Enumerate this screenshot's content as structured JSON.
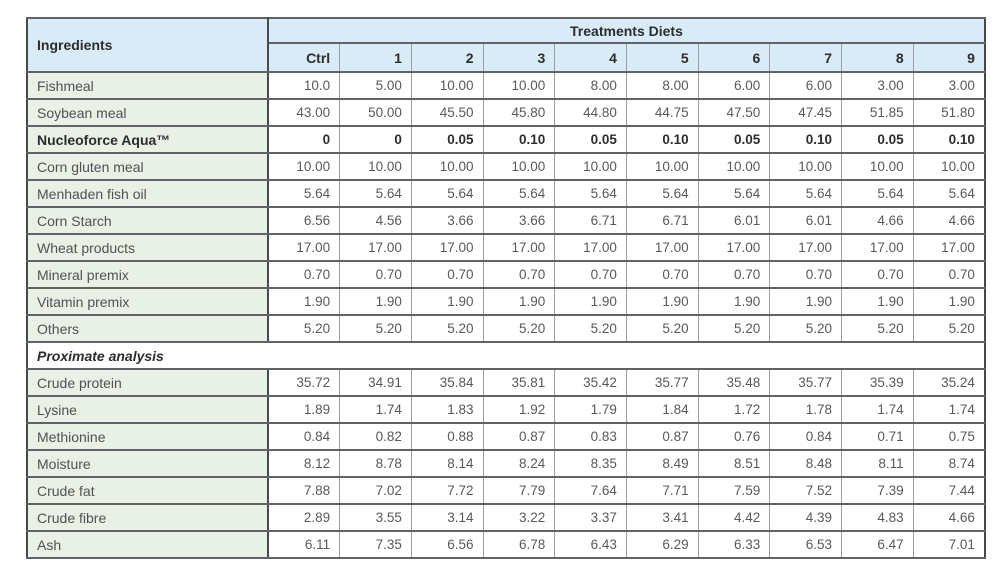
{
  "colors": {
    "header_bg": "#d9ebf7",
    "ingredient_bg": "#e9f0e5",
    "cell_bg": "#ffffff",
    "outer_border": "#47494b",
    "row_border": "#606365",
    "col_border": "#9b9ea1",
    "text": "#58595b"
  },
  "table": {
    "corner_header": "Ingredients",
    "group_header": "Treatments Diets",
    "columns": [
      "Ctrl",
      "1",
      "2",
      "3",
      "4",
      "5",
      "6",
      "7",
      "8",
      "9"
    ],
    "rows": [
      {
        "type": "data",
        "bold": false,
        "label": "Fishmeal",
        "values": [
          "10.0",
          "5.00",
          "10.00",
          "10.00",
          "8.00",
          "8.00",
          "6.00",
          "6.00",
          "3.00",
          "3.00"
        ]
      },
      {
        "type": "data",
        "bold": false,
        "label": "Soybean meal",
        "values": [
          "43.00",
          "50.00",
          "45.50",
          "45.80",
          "44.80",
          "44.75",
          "47.50",
          "47.45",
          "51.85",
          "51.80"
        ]
      },
      {
        "type": "data",
        "bold": true,
        "label": "Nucleoforce Aqua™",
        "values": [
          "0",
          "0",
          "0.05",
          "0.10",
          "0.05",
          "0.10",
          "0.05",
          "0.10",
          "0.05",
          "0.10"
        ]
      },
      {
        "type": "data",
        "bold": false,
        "label": "Corn gluten meal",
        "values": [
          "10.00",
          "10.00",
          "10.00",
          "10.00",
          "10.00",
          "10.00",
          "10.00",
          "10.00",
          "10.00",
          "10.00"
        ]
      },
      {
        "type": "data",
        "bold": false,
        "label": "Menhaden fish oil",
        "values": [
          "5.64",
          "5.64",
          "5.64",
          "5.64",
          "5.64",
          "5.64",
          "5.64",
          "5.64",
          "5.64",
          "5.64"
        ]
      },
      {
        "type": "data",
        "bold": false,
        "label": "Corn Starch",
        "values": [
          "6.56",
          "4.56",
          "3.66",
          "3.66",
          "6.71",
          "6.71",
          "6.01",
          "6.01",
          "4.66",
          "4.66"
        ]
      },
      {
        "type": "data",
        "bold": false,
        "label": "Wheat products",
        "values": [
          "17.00",
          "17.00",
          "17.00",
          "17.00",
          "17.00",
          "17.00",
          "17.00",
          "17.00",
          "17.00",
          "17.00"
        ]
      },
      {
        "type": "data",
        "bold": false,
        "label": "Mineral premix",
        "values": [
          "0.70",
          "0.70",
          "0.70",
          "0.70",
          "0.70",
          "0.70",
          "0.70",
          "0.70",
          "0.70",
          "0.70"
        ]
      },
      {
        "type": "data",
        "bold": false,
        "label": "Vitamin premix",
        "values": [
          "1.90",
          "1.90",
          "1.90",
          "1.90",
          "1.90",
          "1.90",
          "1.90",
          "1.90",
          "1.90",
          "1.90"
        ]
      },
      {
        "type": "data",
        "bold": false,
        "label": "Others",
        "values": [
          "5.20",
          "5.20",
          "5.20",
          "5.20",
          "5.20",
          "5.20",
          "5.20",
          "5.20",
          "5.20",
          "5.20"
        ]
      },
      {
        "type": "section",
        "label": "Proximate analysis"
      },
      {
        "type": "data",
        "bold": false,
        "label": "Crude protein",
        "values": [
          "35.72",
          "34.91",
          "35.84",
          "35.81",
          "35.42",
          "35.77",
          "35.48",
          "35.77",
          "35.39",
          "35.24"
        ]
      },
      {
        "type": "data",
        "bold": false,
        "label": "Lysine",
        "values": [
          "1.89",
          "1.74",
          "1.83",
          "1.92",
          "1.79",
          "1.84",
          "1.72",
          "1.78",
          "1.74",
          "1.74"
        ]
      },
      {
        "type": "data",
        "bold": false,
        "label": "Methionine",
        "values": [
          "0.84",
          "0.82",
          "0.88",
          "0.87",
          "0.83",
          "0.87",
          "0.76",
          "0.84",
          "0.71",
          "0.75"
        ]
      },
      {
        "type": "data",
        "bold": false,
        "label": "Moisture",
        "values": [
          "8.12",
          "8.78",
          "8.14",
          "8.24",
          "8.35",
          "8.49",
          "8.51",
          "8.48",
          "8.11",
          "8.74"
        ]
      },
      {
        "type": "data",
        "bold": false,
        "label": "Crude fat",
        "values": [
          "7.88",
          "7.02",
          "7.72",
          "7.79",
          "7.64",
          "7.71",
          "7.59",
          "7.52",
          "7.39",
          "7.44"
        ]
      },
      {
        "type": "data",
        "bold": false,
        "label": "Crude fibre",
        "values": [
          "2.89",
          "3.55",
          "3.14",
          "3.22",
          "3.37",
          "3.41",
          "4.42",
          "4.39",
          "4.83",
          "4.66"
        ]
      },
      {
        "type": "data",
        "bold": false,
        "label": "Ash",
        "values": [
          "6.11",
          "7.35",
          "6.56",
          "6.78",
          "6.43",
          "6.29",
          "6.33",
          "6.53",
          "6.47",
          "7.01"
        ]
      }
    ]
  }
}
